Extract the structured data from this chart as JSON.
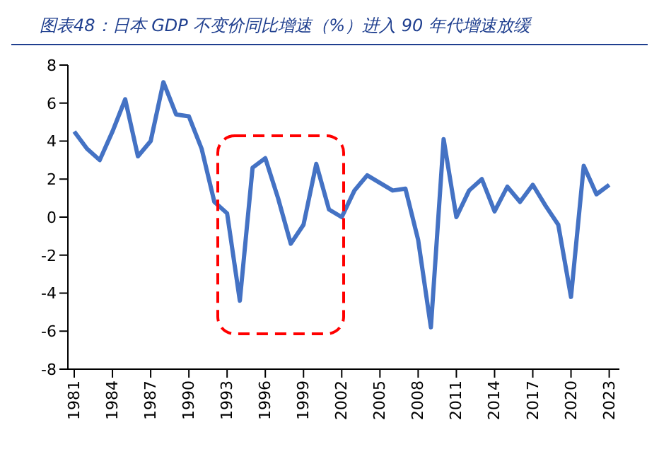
{
  "chart_data": {
    "type": "line",
    "title": "图表48：日本 GDP 不变价同比增速（%）进入 90 年代增速放缓",
    "x": [
      1981,
      1982,
      1983,
      1984,
      1985,
      1986,
      1987,
      1988,
      1989,
      1990,
      1991,
      1992,
      1993,
      1994,
      1995,
      1996,
      1997,
      1998,
      1999,
      2000,
      2001,
      2002,
      2003,
      2004,
      2005,
      2006,
      2007,
      2008,
      2009,
      2010,
      2011,
      2012,
      2013,
      2014,
      2015,
      2016,
      2017,
      2018,
      2019,
      2020,
      2021,
      2022,
      2023
    ],
    "series": [
      {
        "color": "#4472c4",
        "values": [
          4.5,
          3.6,
          3.0,
          4.5,
          6.2,
          3.2,
          4.0,
          7.1,
          5.4,
          5.3,
          3.6,
          0.8,
          0.2,
          -4.4,
          2.6,
          3.1,
          1.0,
          -1.4,
          -0.4,
          2.8,
          0.4,
          0.0,
          1.4,
          2.2,
          1.8,
          1.4,
          1.5,
          -1.2,
          -5.8,
          4.1,
          0.0,
          1.4,
          2.0,
          0.3,
          1.6,
          0.8,
          1.7,
          0.6,
          -0.4,
          -4.2,
          2.7,
          1.2,
          1.7
        ]
      }
    ],
    "xlim": [
      1980.5,
      2023.8
    ],
    "xticks": [
      1981,
      1984,
      1987,
      1990,
      1993,
      1996,
      1999,
      2002,
      2005,
      2008,
      2011,
      2014,
      2017,
      2020,
      2023
    ],
    "ylim": [
      -8,
      8
    ],
    "yticks": [
      -8,
      -6,
      -4,
      -2,
      0,
      2,
      4,
      6,
      8
    ],
    "grid": false,
    "legend": false,
    "marker": "none",
    "line_style": "solid"
  }
}
